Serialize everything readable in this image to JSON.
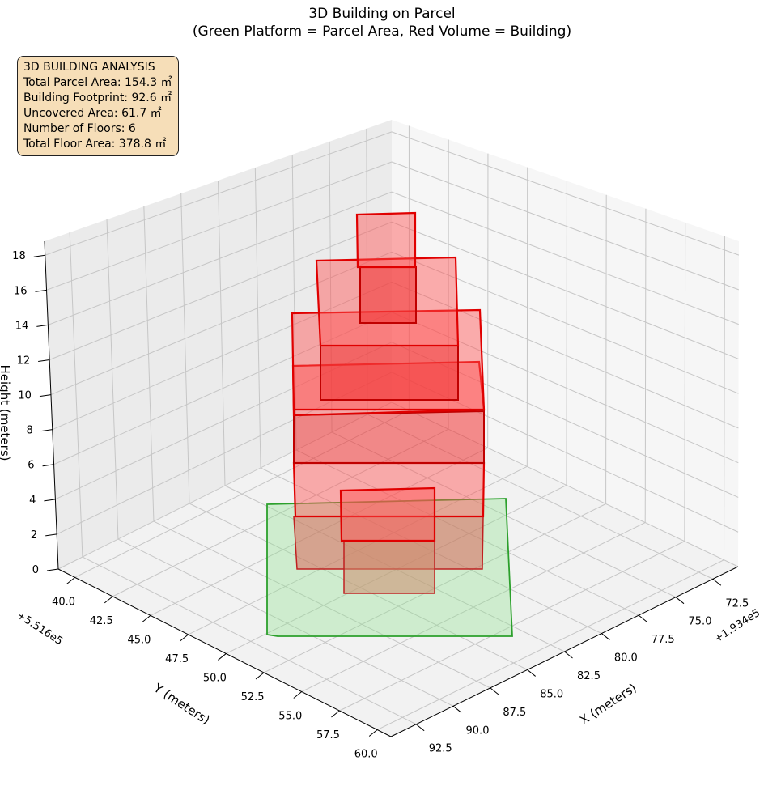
{
  "chart_data": {
    "type": "3d-polygon",
    "title": [
      "3D Building on Parcel",
      "(Green Platform = Parcel Area, Red Volume = Building)"
    ],
    "xlabel": "X (meters)",
    "ylabel": "Y (meters)",
    "zlabel": "Height (meters)",
    "x_offset_label": "+1.934e5",
    "y_offset_label": "+5.516e5",
    "x_ticks": [
      72.5,
      75.0,
      77.5,
      80.0,
      82.5,
      85.0,
      87.5,
      90.0,
      92.5
    ],
    "y_ticks": [
      40.0,
      42.5,
      45.0,
      47.5,
      50.0,
      52.5,
      55.0,
      57.5,
      60.0
    ],
    "z_ticks": [
      0,
      2,
      4,
      6,
      8,
      10,
      12,
      14,
      16,
      18
    ],
    "xlim": [
      70.8,
      94.2
    ],
    "ylim": [
      38.9,
      60.9
    ],
    "zlim": [
      0,
      18.8
    ],
    "grid": true,
    "series": [
      {
        "name": "Parcel Area",
        "color": "#2ca02c",
        "area_m2": 154.3
      },
      {
        "name": "Building",
        "color": "#ff0000",
        "footprint_m2": 92.6,
        "floors": 6,
        "total_floor_area_m2": 378.8
      }
    ]
  },
  "info_box": {
    "title": "3D BUILDING ANALYSIS",
    "lines": [
      "Total Parcel Area: 154.3 ㎡",
      "Building Footprint: 92.6 ㎡",
      "Uncovered Area: 61.7 ㎡",
      "Number of Floors: 6",
      "Total Floor Area: 378.8 ㎡"
    ]
  }
}
